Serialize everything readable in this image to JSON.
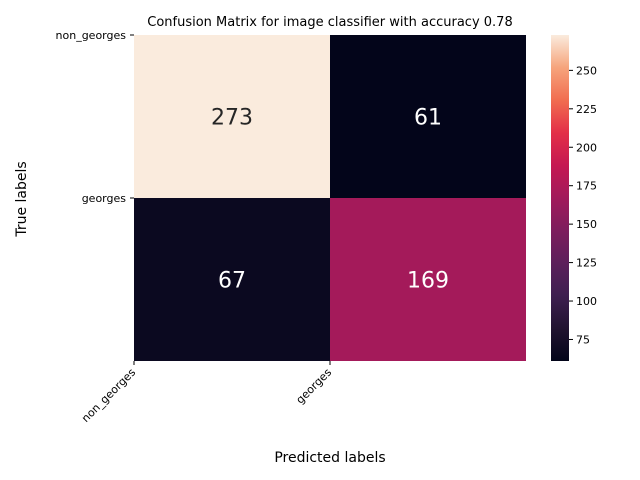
{
  "chart_data": {
    "type": "heatmap",
    "title": "Confusion Matrix for image classifier with accuracy 0.78",
    "xlabel": "Predicted labels",
    "ylabel": "True labels",
    "x_categories": [
      "non_georges",
      "georges"
    ],
    "y_categories": [
      "non_georges",
      "georges"
    ],
    "values": [
      [
        273,
        61
      ],
      [
        67,
        169
      ]
    ],
    "colorbar": {
      "min": 61,
      "max": 273,
      "ticks": [
        75,
        100,
        125,
        150,
        175,
        200,
        225,
        250
      ],
      "colormap": "rocket"
    },
    "colors": {
      "cell_low": "#03051a",
      "cell_high": "#faebdd",
      "text_on_light": "#262626",
      "text_on_dark": "#ffffff"
    }
  }
}
